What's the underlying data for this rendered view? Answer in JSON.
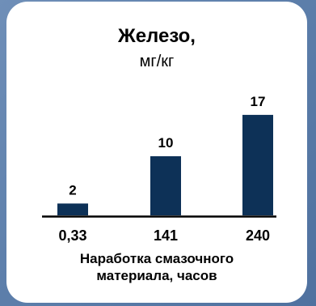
{
  "chart_data": {
    "type": "bar",
    "title": "Железо,",
    "subtitle": "мг/кг",
    "categories": [
      "0,33",
      "141",
      "240"
    ],
    "values": [
      2,
      10,
      17
    ],
    "value_labels": [
      "2",
      "10",
      "17"
    ],
    "xlabel_lines": [
      "Наработка смазочного",
      "материала, часов"
    ],
    "ylim": [
      0,
      17
    ],
    "grid": false,
    "legend": "none",
    "colors": {
      "bar": "#0d3157",
      "axis": "#000000",
      "text": "#000000"
    }
  }
}
